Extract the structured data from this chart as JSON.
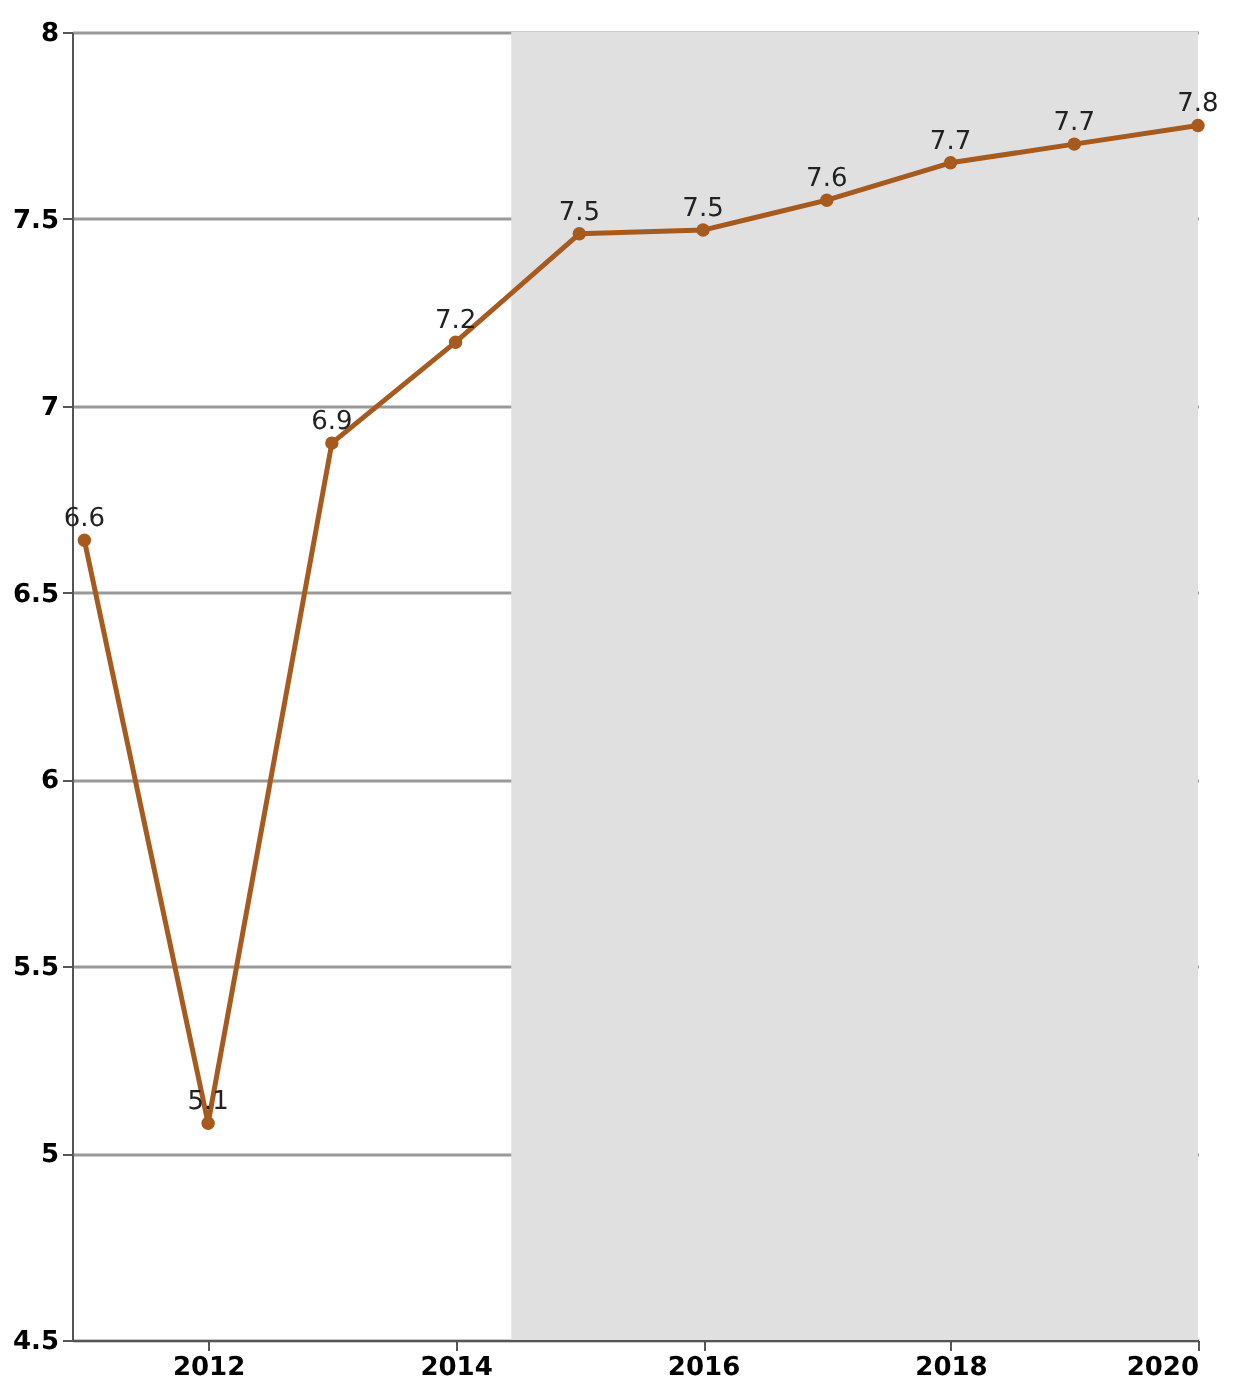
{
  "chart_data": {
    "type": "line",
    "x": [
      2011,
      2012,
      2013,
      2014,
      2015,
      2016,
      2017,
      2018,
      2019,
      2020
    ],
    "series": [
      {
        "color": "#a65a1e",
        "values": [
          6.64,
          5.08,
          6.9,
          7.17,
          7.46,
          7.47,
          7.55,
          7.65,
          7.7,
          7.75
        ],
        "value_labels": [
          "6.6",
          "5.1",
          "6.9",
          "7.2",
          "7.5",
          "7.5",
          "7.6",
          "7.7",
          "7.7",
          "7.8"
        ]
      }
    ],
    "xlim": [
      2010.9,
      2020
    ],
    "xticks": [
      2012,
      2014,
      2016,
      2018,
      2020
    ],
    "ylim": [
      4.5,
      8
    ],
    "yticks": [
      4.5,
      5,
      5.5,
      6,
      6.5,
      7,
      7.5,
      8
    ],
    "bands": [
      {
        "axis": "x",
        "from": 2014.45,
        "to": 2020,
        "color": "#e0e0e0"
      }
    ],
    "grid": "y",
    "marker": "circle",
    "line_style": "solid"
  }
}
